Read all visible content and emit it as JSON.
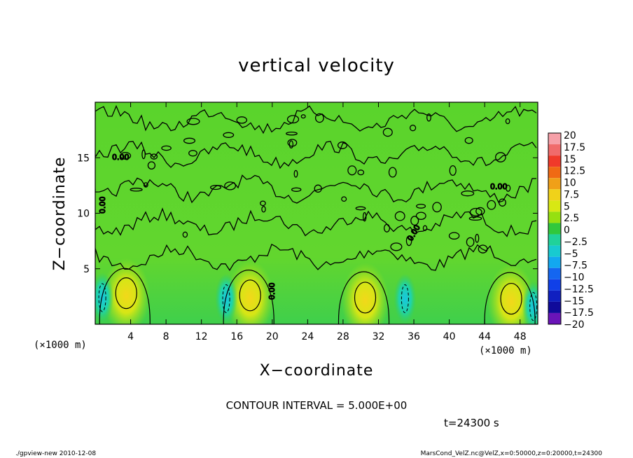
{
  "chart_data": {
    "type": "heatmap",
    "title": "vertical velocity",
    "xlabel": "X−coordinate",
    "ylabel": "Z−coordinate",
    "x_unit_left": "(×1000 m)",
    "x_unit_right": "(×1000 m)",
    "xlim": [
      0,
      50
    ],
    "ylim": [
      0,
      20
    ],
    "x_ticks": [
      4,
      8,
      12,
      16,
      20,
      24,
      28,
      32,
      36,
      40,
      44,
      48
    ],
    "y_ticks": [
      5,
      10,
      15
    ],
    "contour_interval_text": "CONTOUR INTERVAL = 5.000E+00",
    "contour_label": "0.00",
    "time_text": "t=24300 s",
    "colorbar": {
      "levels": [
        "20",
        "17.5",
        "15",
        "12.5",
        "10",
        "7.5",
        "5",
        "2.5",
        "0",
        "−2.5",
        "−5",
        "−7.5",
        "−10",
        "−12.5",
        "−15",
        "−17.5",
        "−20"
      ],
      "colors": [
        "#f6a0a8",
        "#f06b6b",
        "#f03a2a",
        "#f06a14",
        "#f0a018",
        "#f0d21a",
        "#d8e814",
        "#96e010",
        "#30c83c",
        "#20d29a",
        "#18cad0",
        "#12a8f0",
        "#1466f0",
        "#1040e8",
        "#1020c0",
        "#100a9a",
        "#6a14b8"
      ]
    },
    "updrafts": [
      {
        "x": 3.5,
        "z": 2.8,
        "w": 6
      },
      {
        "x": 17.5,
        "z": 2.6,
        "w": 7
      },
      {
        "x": 30.5,
        "z": 2.4,
        "w": 6
      },
      {
        "x": 47.0,
        "z": 2.3,
        "w": 5
      }
    ],
    "downdrafts": [
      {
        "x": 0.8,
        "z": 2.4,
        "w": -6
      },
      {
        "x": 14.8,
        "z": 2.3,
        "w": -6
      },
      {
        "x": 35.0,
        "z": 2.3,
        "w": -6
      },
      {
        "x": 49.5,
        "z": 1.6,
        "w": -4
      }
    ]
  },
  "footer": {
    "left": "./gpview-new  2010-12-08",
    "right": "MarsCond_VelZ.nc@VelZ,x=0:50000,z=0:20000,t=24300"
  }
}
